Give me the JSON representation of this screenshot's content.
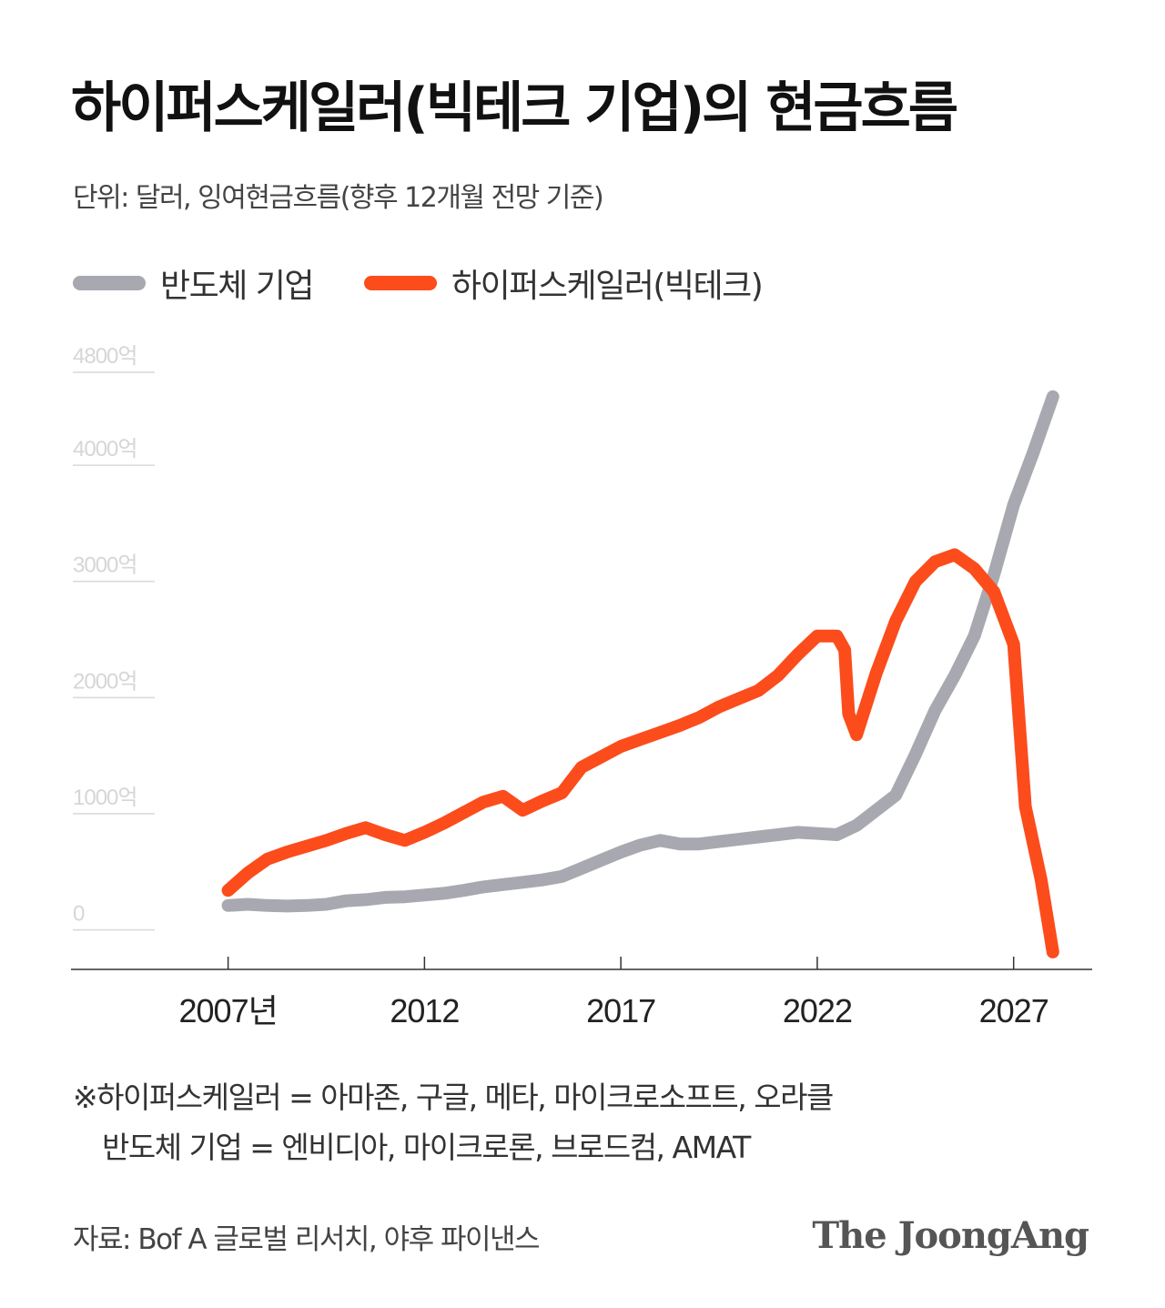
{
  "header": {
    "title": "하이퍼스케일러(빅테크 기업)의 현금흐름",
    "subtitle": "단위: 달러, 잉여현금흐름(향후 12개월 전망 기준)"
  },
  "legend": {
    "items": [
      {
        "label": "반도체 기업",
        "color": "#a8a8b0"
      },
      {
        "label": "하이퍼스케일러(빅테크)",
        "color": "#fc4c1c"
      }
    ]
  },
  "footnote": {
    "line1": "※하이퍼스케일러 = 아마존, 구글, 메타, 마이크로소프트, 오라클",
    "line2": "반도체 기업 = 엔비디아, 마이크로론, 브로드컴, AMAT"
  },
  "source": "자료: Bof A 글로벌 리서치, 야후 파이낸스",
  "logo": "The JoongAng",
  "chart_data": {
    "type": "line",
    "y_ticks": [
      "0",
      "1000억",
      "2000억",
      "3000억",
      "4000억",
      "4800억"
    ],
    "y_tick_values": [
      0,
      1000,
      2000,
      3000,
      4000,
      4800
    ],
    "x_ticks": [
      "2007년",
      "2012",
      "2017",
      "2022",
      "2027"
    ],
    "x_tick_values": [
      2007,
      2012,
      2017,
      2022,
      2027
    ],
    "xlim": [
      2003,
      2029
    ],
    "ylim": [
      -450,
      4800
    ],
    "grid": false,
    "legend_position": "top-left",
    "series": [
      {
        "name": "반도체 기업",
        "color": "#a8a8b0",
        "points": [
          [
            2007,
            100
          ],
          [
            2007.5,
            110
          ],
          [
            2008,
            100
          ],
          [
            2008.5,
            95
          ],
          [
            2009,
            100
          ],
          [
            2009.5,
            110
          ],
          [
            2010,
            140
          ],
          [
            2010.5,
            150
          ],
          [
            2011,
            170
          ],
          [
            2011.5,
            175
          ],
          [
            2012,
            190
          ],
          [
            2012.5,
            205
          ],
          [
            2013,
            230
          ],
          [
            2013.5,
            260
          ],
          [
            2014,
            280
          ],
          [
            2014.5,
            300
          ],
          [
            2015,
            320
          ],
          [
            2015.5,
            350
          ],
          [
            2016,
            420
          ],
          [
            2016.5,
            490
          ],
          [
            2017,
            560
          ],
          [
            2017.5,
            620
          ],
          [
            2018,
            660
          ],
          [
            2018.5,
            630
          ],
          [
            2019,
            630
          ],
          [
            2019.5,
            650
          ],
          [
            2020,
            670
          ],
          [
            2020.5,
            690
          ],
          [
            2021,
            710
          ],
          [
            2021.5,
            730
          ],
          [
            2022,
            720
          ],
          [
            2022.5,
            710
          ],
          [
            2023,
            790
          ],
          [
            2023.5,
            920
          ],
          [
            2024,
            1050
          ],
          [
            2024.5,
            1400
          ],
          [
            2025,
            1780
          ],
          [
            2025.5,
            2080
          ],
          [
            2026,
            2420
          ],
          [
            2026.5,
            2950
          ],
          [
            2027,
            3550
          ],
          [
            2027.5,
            4000
          ],
          [
            2028,
            4480
          ]
        ]
      },
      {
        "name": "하이퍼스케일러(빅테크)",
        "color": "#fc4c1c",
        "points": [
          [
            2007,
            230
          ],
          [
            2007.5,
            380
          ],
          [
            2008,
            500
          ],
          [
            2008.5,
            560
          ],
          [
            2009,
            610
          ],
          [
            2009.5,
            660
          ],
          [
            2010,
            720
          ],
          [
            2010.5,
            770
          ],
          [
            2011,
            710
          ],
          [
            2011.5,
            660
          ],
          [
            2012,
            730
          ],
          [
            2012.5,
            810
          ],
          [
            2013,
            900
          ],
          [
            2013.5,
            990
          ],
          [
            2014,
            1040
          ],
          [
            2014.5,
            920
          ],
          [
            2015,
            1000
          ],
          [
            2015.5,
            1070
          ],
          [
            2016,
            1290
          ],
          [
            2016.5,
            1380
          ],
          [
            2017,
            1470
          ],
          [
            2017.5,
            1530
          ],
          [
            2018,
            1590
          ],
          [
            2018.5,
            1650
          ],
          [
            2019,
            1720
          ],
          [
            2019.5,
            1810
          ],
          [
            2020,
            1880
          ],
          [
            2020.5,
            1950
          ],
          [
            2021,
            2080
          ],
          [
            2021.5,
            2260
          ],
          [
            2022,
            2420
          ],
          [
            2022.5,
            2420
          ],
          [
            2022.7,
            2300
          ],
          [
            2022.8,
            1750
          ],
          [
            2023,
            1570
          ],
          [
            2023.5,
            2100
          ],
          [
            2024,
            2550
          ],
          [
            2024.5,
            2890
          ],
          [
            2025,
            3060
          ],
          [
            2025.5,
            3120
          ],
          [
            2026,
            3000
          ],
          [
            2026.5,
            2800
          ],
          [
            2027,
            2350
          ],
          [
            2027.3,
            950
          ],
          [
            2027.7,
            320
          ],
          [
            2028,
            -300
          ]
        ]
      }
    ]
  }
}
